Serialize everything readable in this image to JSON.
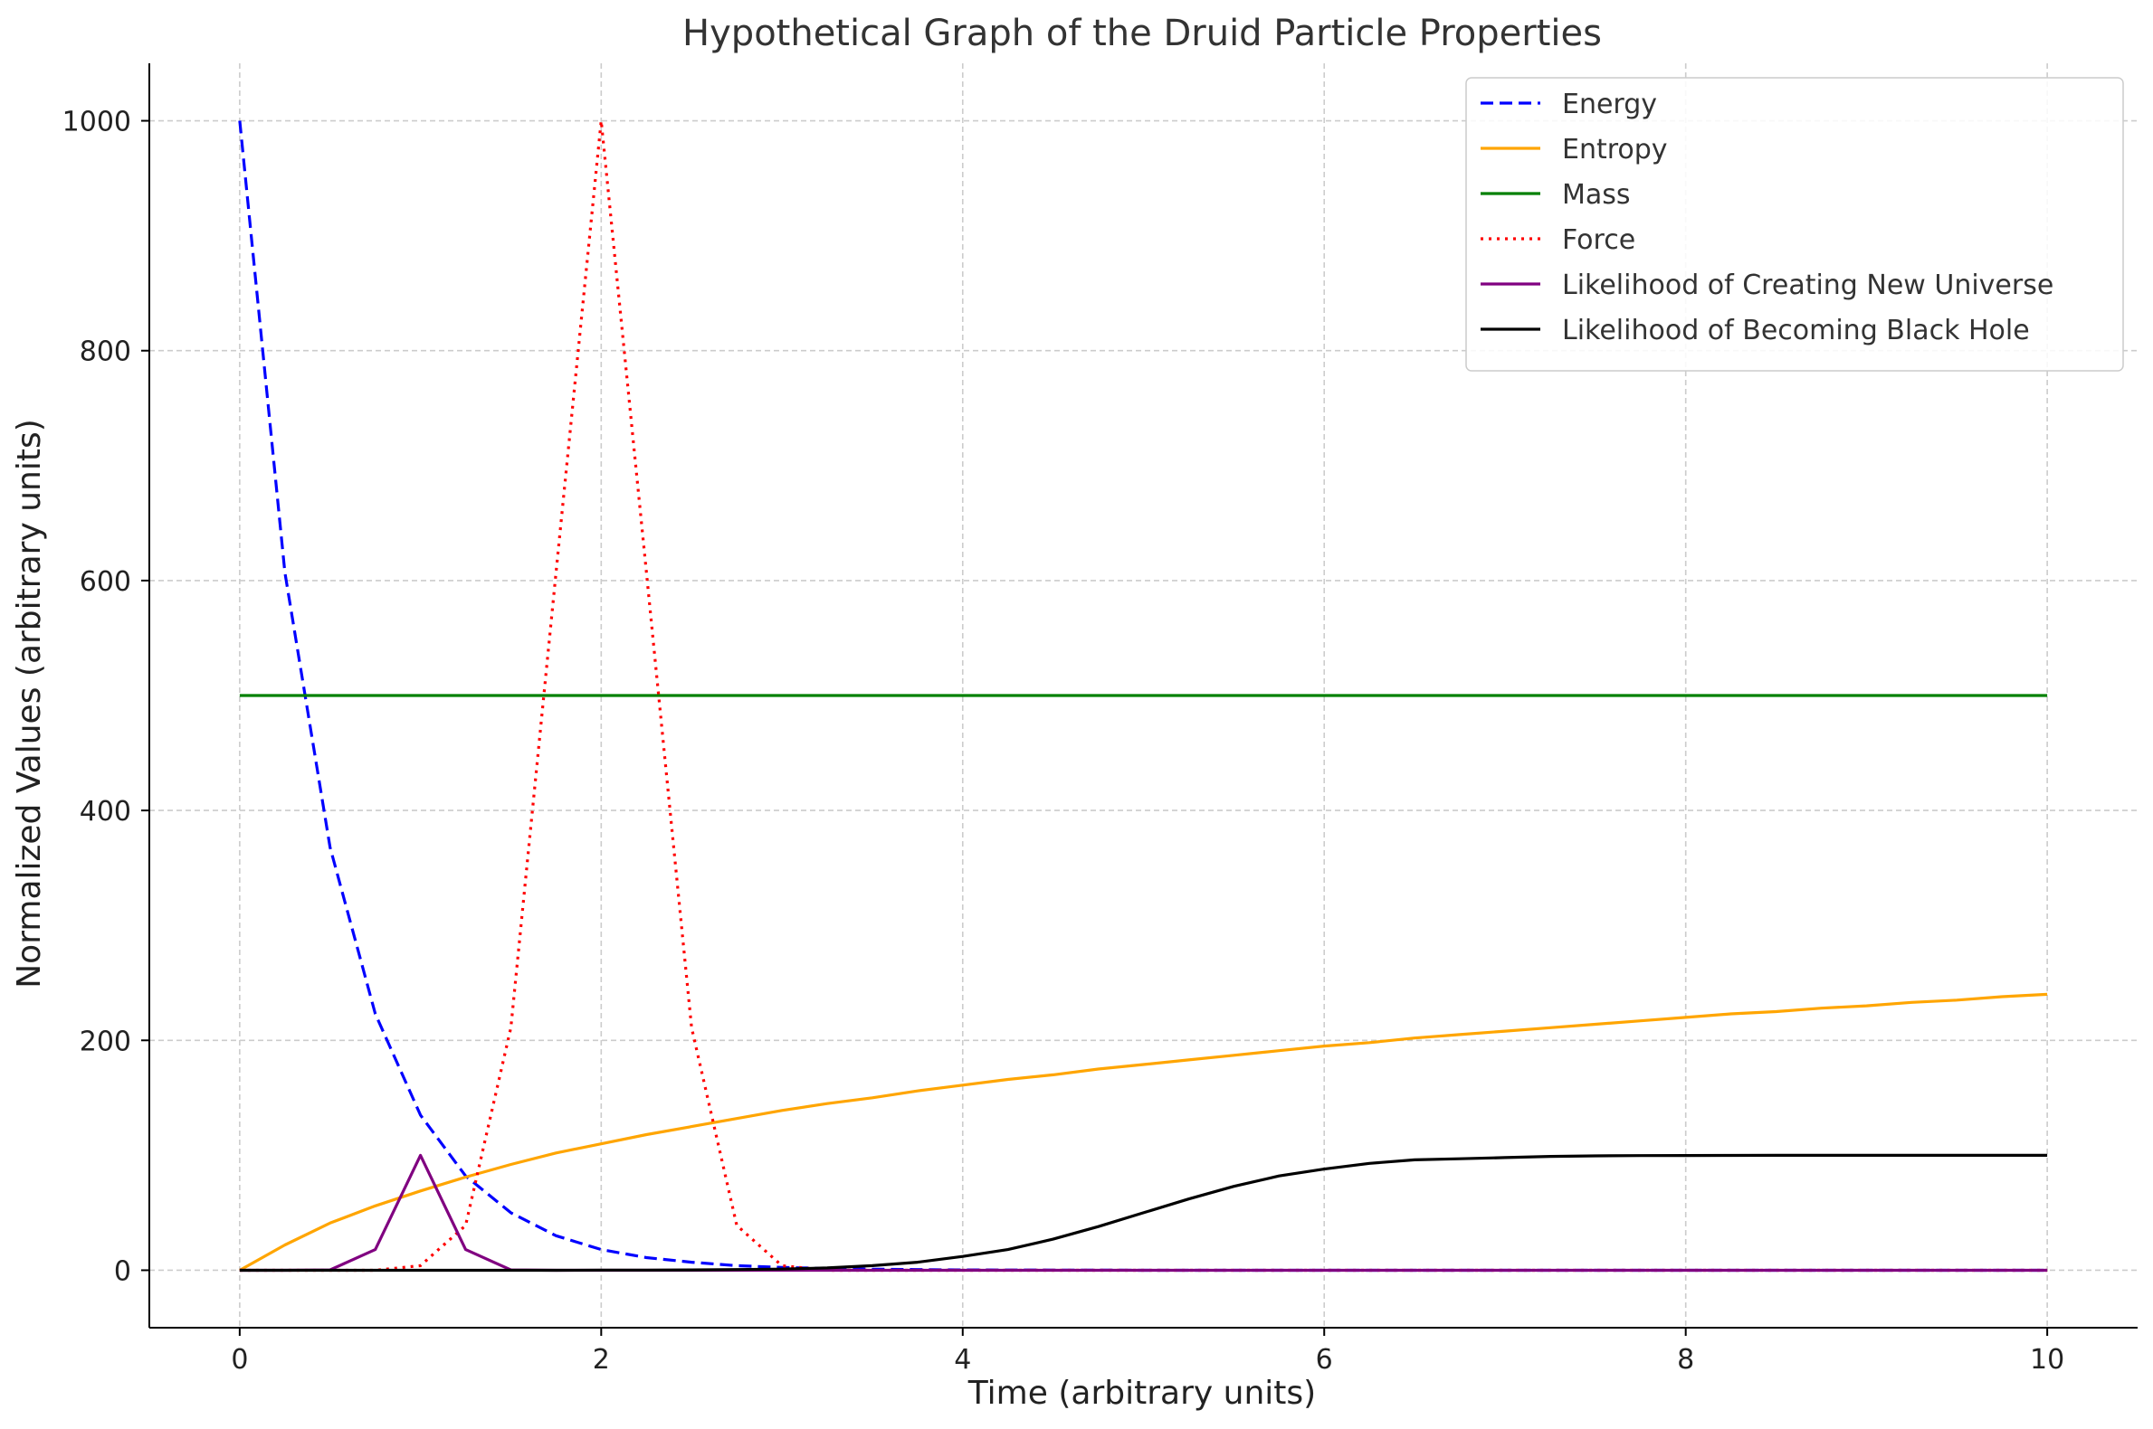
{
  "chart_data": {
    "type": "line",
    "title": "Hypothetical Graph of the Druid Particle Properties",
    "xlabel": "Time (arbitrary units)",
    "ylabel": "Normalized Values (arbitrary units)",
    "xlim": [
      -0.5,
      10.5
    ],
    "ylim": [
      -50,
      1050
    ],
    "xticks": [
      0,
      2,
      4,
      6,
      8,
      10
    ],
    "yticks": [
      0,
      200,
      400,
      600,
      800,
      1000
    ],
    "grid": true,
    "legend_position": "top-right",
    "x": [
      0,
      0.25,
      0.5,
      0.75,
      1,
      1.25,
      1.5,
      1.75,
      2,
      2.25,
      2.5,
      2.75,
      3,
      3.25,
      3.5,
      3.75,
      4,
      4.25,
      4.5,
      4.75,
      5,
      5.25,
      5.5,
      5.75,
      6,
      6.25,
      6.5,
      6.75,
      7,
      7.25,
      7.5,
      7.75,
      8,
      8.25,
      8.5,
      8.75,
      9,
      9.25,
      9.5,
      9.75,
      10
    ],
    "series": [
      {
        "name": "Energy",
        "color": "#0000ff",
        "style": "dashed",
        "values": [
          1000,
          607,
          368,
          223,
          135,
          82,
          50,
          30,
          18,
          11,
          7,
          4,
          2.5,
          1.5,
          0.9,
          0.6,
          0.3,
          0.2,
          0.1,
          0.1,
          0,
          0,
          0,
          0,
          0,
          0,
          0,
          0,
          0,
          0,
          0,
          0,
          0,
          0,
          0,
          0,
          0,
          0,
          0,
          0,
          0
        ]
      },
      {
        "name": "Entropy",
        "color": "#ffa500",
        "style": "solid",
        "values": [
          0,
          22,
          41,
          56,
          69,
          81,
          92,
          102,
          110,
          118,
          125,
          132,
          139,
          145,
          150,
          156,
          161,
          166,
          170,
          175,
          179,
          183,
          187,
          191,
          195,
          198,
          202,
          205,
          208,
          211,
          214,
          217,
          220,
          223,
          225,
          228,
          230,
          233,
          235,
          238,
          240
        ]
      },
      {
        "name": "Mass",
        "color": "#008000",
        "style": "solid",
        "values": [
          500,
          500,
          500,
          500,
          500,
          500,
          500,
          500,
          500,
          500,
          500,
          500,
          500,
          500,
          500,
          500,
          500,
          500,
          500,
          500,
          500,
          500,
          500,
          500,
          500,
          500,
          500,
          500,
          500,
          500,
          500,
          500,
          500,
          500,
          500,
          500,
          500,
          500,
          500,
          500,
          500
        ]
      },
      {
        "name": "Force",
        "color": "#ff0000",
        "style": "dotted",
        "values": [
          0,
          0,
          0,
          0,
          4,
          39,
          211,
          607,
          1000,
          607,
          211,
          39,
          4,
          0,
          0,
          0,
          0,
          0,
          0,
          0,
          0,
          0,
          0,
          0,
          0,
          0,
          0,
          0,
          0,
          0,
          0,
          0,
          0,
          0,
          0,
          0,
          0,
          0,
          0,
          0,
          0
        ]
      },
      {
        "name": "Likelihood of Creating New Universe",
        "color": "#800080",
        "style": "solid",
        "values": [
          0,
          0,
          0.3,
          18,
          100,
          18,
          0.3,
          0,
          0,
          0,
          0,
          0,
          0,
          0,
          0,
          0,
          0,
          0,
          0,
          0,
          0,
          0,
          0,
          0,
          0,
          0,
          0,
          0,
          0,
          0,
          0,
          0,
          0,
          0,
          0,
          0,
          0,
          0,
          0,
          0,
          0
        ]
      },
      {
        "name": "Likelihood of Becoming Black Hole",
        "color": "#000000",
        "style": "solid",
        "values": [
          0,
          0,
          0,
          0,
          0,
          0,
          0,
          0,
          0.1,
          0.1,
          0.3,
          0.6,
          1,
          2,
          4,
          7,
          12,
          18,
          27,
          38,
          50,
          62,
          73,
          82,
          88,
          93,
          96,
          97,
          98,
          99,
          99.5,
          99.7,
          99.8,
          99.9,
          100,
          100,
          100,
          100,
          100,
          100,
          100
        ]
      }
    ]
  }
}
